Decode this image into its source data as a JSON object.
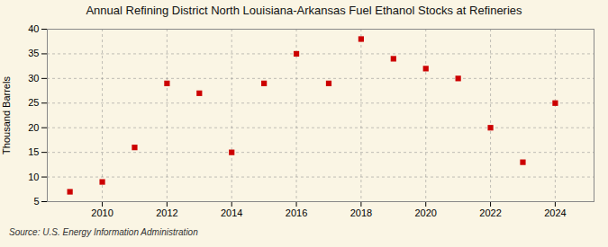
{
  "chart_data": {
    "type": "scatter",
    "title": "Annual Refining District North Louisiana-Arkansas Fuel Ethanol Stocks at Refineries",
    "ylabel": "Thousand Barrels",
    "annotation": "Source: U.S. Energy Information Administration",
    "x": [
      2009,
      2010,
      2011,
      2012,
      2013,
      2014,
      2015,
      2016,
      2017,
      2018,
      2019,
      2020,
      2021,
      2022,
      2023,
      2024
    ],
    "values": [
      7,
      9,
      16,
      29,
      27,
      15,
      29,
      35,
      29,
      38,
      34,
      32,
      30,
      20,
      13,
      25
    ],
    "color": "#cc0000",
    "marker": "square",
    "xlim": [
      2008.3,
      2025.2
    ],
    "ylim": [
      5,
      40
    ],
    "xticks": [
      2010,
      2012,
      2014,
      2016,
      2018,
      2020,
      2022,
      2024
    ],
    "yticks": [
      5,
      10,
      15,
      20,
      25,
      30,
      35,
      40
    ],
    "grid": true
  }
}
